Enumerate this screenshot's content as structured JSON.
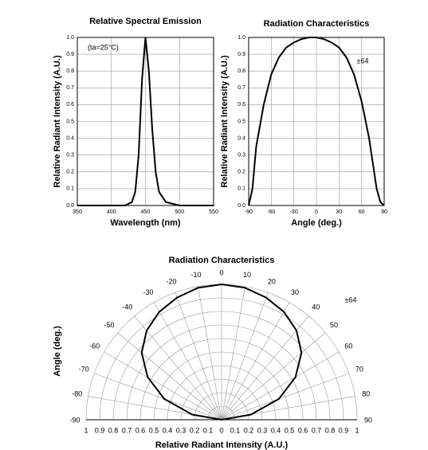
{
  "chart_data": [
    {
      "type": "line",
      "title": "Relative Spectral Emission",
      "x_label": "Wavelength (nm)",
      "y_label": "Relative Radiant Intensity (A.U.)",
      "annotation": "(ta=25°C)",
      "x": [
        350,
        420,
        430,
        435,
        440,
        445,
        450,
        455,
        460,
        465,
        470,
        480,
        490,
        500,
        550
      ],
      "values": [
        0,
        0,
        0.02,
        0.08,
        0.3,
        0.75,
        1.0,
        0.8,
        0.45,
        0.2,
        0.08,
        0.02,
        0.01,
        0,
        0
      ],
      "color": "#000000",
      "xlim": [
        350,
        550
      ],
      "xticks": [
        350,
        400,
        450,
        500,
        550
      ],
      "ylim": [
        0,
        1
      ],
      "yticks": [
        {
          "value": 0,
          "label": "0.0"
        },
        0.1,
        0.2,
        0.3,
        0.4,
        0.5,
        0.6,
        0.7,
        0.8,
        0.9,
        {
          "value": 1,
          "label": "1.0"
        }
      ],
      "grid": true
    },
    {
      "type": "line",
      "title": "Radiation Characteristics",
      "x_label": "Angle (deg.)",
      "y_label": "Relative Radiant Intensity (A.U.)",
      "annotation": "±64",
      "x": [
        -90,
        -85,
        -80,
        -70,
        -60,
        -50,
        -40,
        -30,
        -20,
        -10,
        0,
        10,
        20,
        30,
        40,
        50,
        60,
        70,
        75,
        80,
        85,
        90
      ],
      "values": [
        0,
        0.1,
        0.35,
        0.6,
        0.78,
        0.88,
        0.94,
        0.97,
        0.99,
        1.0,
        1.0,
        0.99,
        0.97,
        0.94,
        0.88,
        0.78,
        0.62,
        0.4,
        0.25,
        0.1,
        0.02,
        0
      ],
      "color": "#000000",
      "xlim": [
        -90,
        90
      ],
      "xticks": [
        -90,
        -60,
        -30,
        0,
        30,
        60,
        90
      ],
      "ylim": [
        0,
        1
      ],
      "yticks": [
        {
          "value": 0,
          "label": "0.0"
        },
        0.1,
        0.2,
        0.3,
        0.4,
        0.5,
        0.6,
        0.7,
        0.8,
        0.9,
        {
          "value": 1,
          "label": "1.0"
        }
      ],
      "grid": true
    },
    {
      "type": "polar",
      "title": "Radiation Characteristics",
      "x_label": "Relative Radiant Intensity (A.U.)",
      "y_label": "Angle (deg.)",
      "annotation": "±64",
      "theta": [
        -90,
        -80,
        -70,
        -60,
        -50,
        -40,
        -30,
        -20,
        -10,
        0,
        10,
        20,
        30,
        40,
        50,
        60,
        70,
        80,
        90
      ],
      "values": [
        0,
        0.22,
        0.45,
        0.63,
        0.77,
        0.86,
        0.92,
        0.96,
        0.99,
        1.0,
        0.99,
        0.96,
        0.92,
        0.86,
        0.77,
        0.63,
        0.45,
        0.22,
        0
      ],
      "color": "#000000",
      "rlim": [
        0,
        1
      ],
      "rticks": [
        0,
        0.1,
        0.2,
        0.3,
        0.4,
        0.5,
        0.6,
        0.7,
        0.8,
        0.9,
        1
      ],
      "thetaticks": [
        -90,
        -80,
        -70,
        -60,
        -50,
        -40,
        -30,
        -20,
        -10,
        0,
        10,
        20,
        30,
        40,
        50,
        60,
        70,
        80,
        90
      ],
      "grid": true
    }
  ]
}
